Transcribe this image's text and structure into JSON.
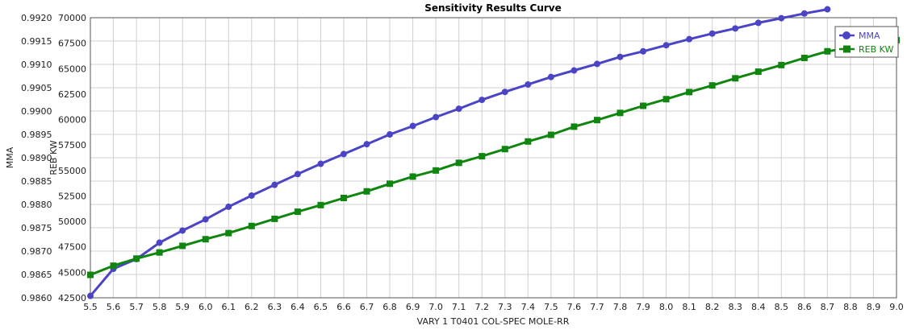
{
  "chart_data": {
    "type": "line",
    "title": "Sensitivity Results Curve",
    "xlabel": "VARY   1 T0401 COL-SPEC MOLE-RR",
    "ylabel_left": "MMA",
    "ylabel_right": "REB KW",
    "xlim": [
      5.5,
      9.0
    ],
    "ylim_left": [
      0.986,
      0.992
    ],
    "ylim_right": [
      42500,
      70000
    ],
    "x": [
      5.5,
      5.6,
      5.7,
      5.8,
      5.9,
      6.0,
      6.1,
      6.2,
      6.3,
      6.4,
      6.5,
      6.6,
      6.7,
      6.8,
      6.9,
      7.0,
      7.1,
      7.2,
      7.3,
      7.4,
      7.5,
      7.6,
      7.7,
      7.8,
      7.9,
      8.0,
      8.1,
      8.2,
      8.3,
      8.4,
      8.5,
      8.6,
      8.7,
      8.8,
      8.9,
      9.0
    ],
    "x_tick_labels": [
      "5.5",
      "5.6",
      "5.7",
      "5.8",
      "5.9",
      "6.0",
      "6.1",
      "6.2",
      "6.3",
      "6.4",
      "6.5",
      "6.6",
      "6.7",
      "6.8",
      "6.9",
      "7.0",
      "7.1",
      "7.2",
      "7.3",
      "7.4",
      "7.5",
      "7.6",
      "7.7",
      "7.8",
      "7.9",
      "8.0",
      "8.1",
      "8.2",
      "8.3",
      "8.4",
      "8.5",
      "8.6",
      "8.7",
      "8.8",
      "8.9",
      "9.0"
    ],
    "y_left_tick_labels": [
      "0.9860",
      "0.9865",
      "0.9870",
      "0.9875",
      "0.9880",
      "0.9885",
      "0.9890",
      "0.9895",
      "0.9900",
      "0.9905",
      "0.9910",
      "0.9915",
      "0.9920"
    ],
    "y_right_tick_labels": [
      "42500",
      "45000",
      "47500",
      "50000",
      "52500",
      "55000",
      "57500",
      "60000",
      "62500",
      "65000",
      "67500",
      "70000"
    ],
    "grid": true,
    "legend_position": "top-right",
    "series": [
      {
        "name": "MMA",
        "axis": "left",
        "color": "#4b45c6",
        "marker": "circle",
        "x": [
          5.5,
          5.6,
          5.7,
          5.8,
          5.9,
          6.0,
          6.1,
          6.2,
          6.3,
          6.4,
          6.5,
          6.6,
          6.7,
          6.8,
          6.9,
          7.0,
          7.1,
          7.2,
          7.3,
          7.4,
          7.5,
          7.6,
          7.7,
          7.8,
          7.9,
          8.0,
          8.1,
          8.2,
          8.3,
          8.4,
          8.5,
          8.6,
          8.7
        ],
        "values": [
          0.98604,
          0.98662,
          0.98683,
          0.98718,
          0.98744,
          0.98768,
          0.98795,
          0.98819,
          0.98842,
          0.98865,
          0.98887,
          0.98908,
          0.98929,
          0.9895,
          0.98968,
          0.98987,
          0.99005,
          0.99024,
          0.99041,
          0.99057,
          0.99073,
          0.99087,
          0.99101,
          0.99116,
          0.99128,
          0.99141,
          0.99154,
          0.99166,
          0.99177,
          0.99189,
          0.99199,
          0.99209,
          0.99218
        ]
      },
      {
        "name": "REB KW",
        "axis": "right",
        "color": "#108510",
        "marker": "square",
        "x": [
          5.5,
          5.6,
          5.7,
          5.8,
          5.9,
          6.0,
          6.1,
          6.2,
          6.3,
          6.4,
          6.5,
          6.6,
          6.7,
          6.8,
          6.9,
          7.0,
          7.1,
          7.2,
          7.3,
          7.4,
          7.5,
          7.6,
          7.7,
          7.8,
          7.9,
          8.0,
          8.1,
          8.2,
          8.3,
          8.4,
          8.5,
          8.6,
          8.7,
          9.0
        ],
        "values": [
          44750,
          45650,
          46350,
          46950,
          47600,
          48250,
          48850,
          49550,
          50250,
          50950,
          51600,
          52300,
          52950,
          53700,
          54400,
          55000,
          55750,
          56400,
          57100,
          57850,
          58500,
          59300,
          59950,
          60650,
          61350,
          62000,
          62700,
          63350,
          64050,
          64700,
          65350,
          66050,
          66700,
          67800
        ]
      }
    ]
  }
}
